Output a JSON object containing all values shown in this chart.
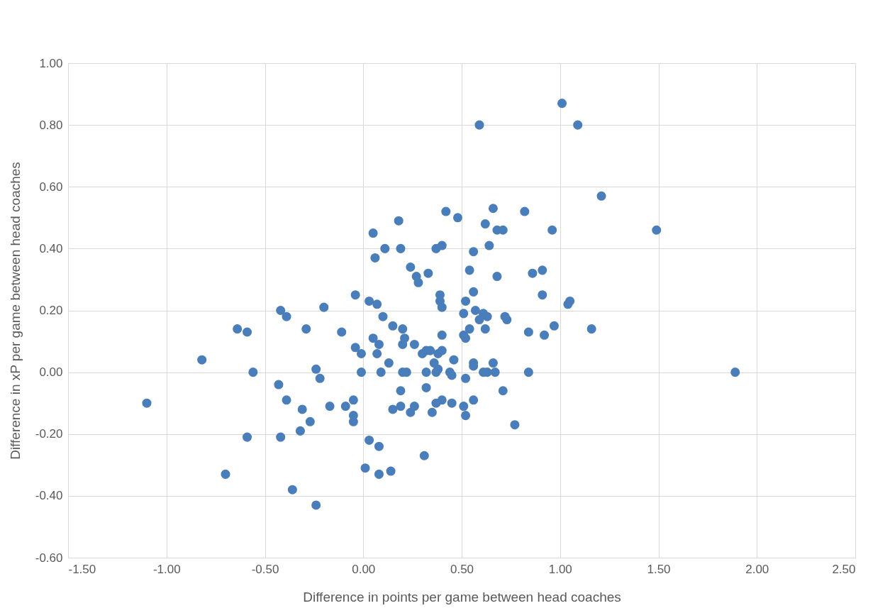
{
  "chart_data": {
    "type": "scatter",
    "xlabel": "Difference in points per game between head coaches",
    "ylabel": "Difference in xP per game between head coaches",
    "xlim": [
      -1.5,
      2.5
    ],
    "ylim": [
      -0.6,
      1.0
    ],
    "xticks": [
      {
        "value": -1.5,
        "label": "-1.50"
      },
      {
        "value": -1.0,
        "label": "-1.00"
      },
      {
        "value": -0.5,
        "label": "-0.50"
      },
      {
        "value": 0,
        "label": "0.00"
      },
      {
        "value": 0.5,
        "label": "0.50"
      },
      {
        "value": 1.0,
        "label": "1.00"
      },
      {
        "value": 1.5,
        "label": "1.50"
      },
      {
        "value": 2.0,
        "label": "2.00"
      },
      {
        "value": 2.5,
        "label": "2.50"
      }
    ],
    "yticks": [
      {
        "value": -0.6,
        "label": "-0.60"
      },
      {
        "value": -0.4,
        "label": "-0.40"
      },
      {
        "value": -0.2,
        "label": "-0.20"
      },
      {
        "value": 0,
        "label": "0.00"
      },
      {
        "value": 0.2,
        "label": "0.20"
      },
      {
        "value": 0.4,
        "label": "0.40"
      },
      {
        "value": 0.6,
        "label": "0.60"
      },
      {
        "value": 0.8,
        "label": "0.80"
      },
      {
        "value": 1.0,
        "label": "1.00"
      }
    ],
    "grid": true,
    "marker": "circle",
    "series": [
      {
        "color": "#4a7ebb",
        "x": [
          -1.1,
          -0.82,
          -0.7,
          -0.64,
          -0.59,
          -0.59,
          -0.56,
          -0.43,
          -0.42,
          -0.42,
          -0.39,
          -0.39,
          -0.36,
          -0.31,
          -0.32,
          -0.27,
          -0.29,
          -0.24,
          -0.24,
          -0.22,
          -0.2,
          -0.17,
          -0.11,
          -0.09,
          -0.05,
          -0.05,
          -0.05,
          -0.04,
          -0.04,
          -0.01,
          -0.01,
          0.01,
          0.03,
          0.03,
          0.05,
          0.05,
          0.06,
          0.07,
          0.07,
          0.08,
          0.08,
          0.08,
          0.09,
          0.1,
          0.11,
          0.13,
          0.15,
          0.15,
          0.14,
          0.18,
          0.19,
          0.19,
          0.19,
          0.2,
          0.2,
          0.2,
          0.21,
          0.22,
          0.24,
          0.24,
          0.26,
          0.26,
          0.27,
          0.28,
          0.3,
          0.31,
          0.32,
          0.32,
          0.32,
          0.33,
          0.34,
          0.35,
          0.36,
          0.37,
          0.37,
          0.37,
          0.38,
          0.38,
          0.39,
          0.39,
          0.4,
          0.4,
          0.4,
          0.4,
          0.4,
          0.42,
          0.44,
          0.45,
          0.46,
          0.45,
          0.48,
          0.51,
          0.51,
          0.51,
          0.52,
          0.52,
          0.52,
          0.52,
          0.54,
          0.54,
          0.56,
          0.56,
          0.56,
          0.56,
          0.56,
          0.57,
          0.59,
          0.59,
          0.61,
          0.61,
          0.62,
          0.63,
          0.62,
          0.63,
          0.64,
          0.66,
          0.66,
          0.67,
          0.68,
          0.68,
          0.71,
          0.71,
          0.72,
          0.73,
          0.77,
          0.82,
          0.84,
          0.86,
          0.84,
          0.91,
          0.91,
          0.92,
          0.96,
          0.97,
          1.01,
          1.04,
          1.05,
          1.09,
          1.21,
          1.16,
          1.49,
          1.89
        ],
        "values": [
          -0.1,
          0.04,
          -0.33,
          0.14,
          0.13,
          -0.21,
          0.0,
          -0.04,
          -0.21,
          0.2,
          0.18,
          -0.09,
          -0.38,
          -0.12,
          -0.19,
          -0.16,
          0.14,
          0.01,
          -0.43,
          -0.02,
          0.21,
          -0.11,
          0.13,
          -0.11,
          -0.09,
          -0.14,
          -0.16,
          0.25,
          0.08,
          0.06,
          0.0,
          -0.31,
          -0.22,
          0.23,
          0.45,
          0.11,
          0.37,
          0.06,
          0.22,
          0.09,
          -0.24,
          -0.33,
          0.0,
          0.18,
          0.4,
          0.03,
          0.15,
          -0.12,
          -0.32,
          0.49,
          -0.06,
          -0.11,
          0.4,
          0.14,
          0.09,
          0.0,
          0.11,
          0.0,
          -0.13,
          0.34,
          0.09,
          -0.11,
          0.31,
          0.29,
          0.06,
          -0.27,
          0.07,
          0.0,
          -0.05,
          0.32,
          0.07,
          -0.13,
          0.03,
          0.4,
          -0.1,
          0.0,
          0.06,
          0.01,
          0.25,
          0.23,
          0.21,
          0.12,
          0.41,
          -0.09,
          0.07,
          0.52,
          0.0,
          -0.01,
          0.04,
          -0.1,
          0.5,
          0.19,
          0.12,
          -0.11,
          -0.02,
          -0.14,
          0.11,
          0.23,
          0.33,
          0.14,
          0.39,
          0.02,
          -0.09,
          0.03,
          0.26,
          0.2,
          0.8,
          0.17,
          0.19,
          0.0,
          0.48,
          0.18,
          0.14,
          0.0,
          0.41,
          0.03,
          0.53,
          0.0,
          0.31,
          0.46,
          0.46,
          -0.06,
          0.18,
          0.17,
          -0.17,
          0.52,
          0.13,
          0.32,
          0.0,
          0.33,
          0.25,
          0.12,
          0.46,
          0.15,
          0.87,
          0.22,
          0.23,
          0.8,
          0.57,
          0.14,
          0.46,
          0.0
        ]
      }
    ]
  }
}
